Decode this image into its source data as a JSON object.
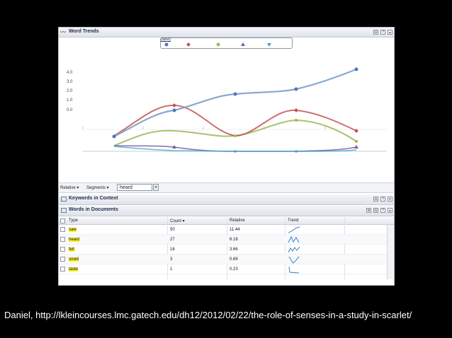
{
  "caption": "Daniel, http://lkleincourses.lmc.gatech.edu/dh12/2012/02/22/the-role-of-senses-in-a-study-in-scarlet/",
  "word_trends": {
    "title": "Word Trends",
    "legend_title": "(label)",
    "y_ticks": [
      "4.0",
      "3.0",
      "2.0",
      "1.0",
      "0.0"
    ],
    "series_colors": [
      "#4a78b5",
      "#c24a4a",
      "#9aba55",
      "#7b5ba8",
      "#3aa7c7"
    ],
    "tools": [
      "⊟",
      "?",
      "▴"
    ]
  },
  "toolbar": {
    "relative_label": "Relative ▾",
    "segments_label": "Segments ▾",
    "term_value": "heard",
    "dropdown_icon": "▾"
  },
  "kic": {
    "title": "Keywords in Context",
    "tools": [
      "⊟",
      "?",
      "▾"
    ]
  },
  "wid": {
    "title": "Words in Documents",
    "tools": [
      "⚙",
      "⊟",
      "?",
      "▴"
    ],
    "columns": [
      "Type",
      "Count ▾",
      "Relative",
      "Trend"
    ],
    "rows": [
      {
        "type": "saw",
        "count": "50",
        "relative": "11.44"
      },
      {
        "type": "heard",
        "count": "27",
        "relative": "6.18"
      },
      {
        "type": "felt",
        "count": "16",
        "relative": "3.66"
      },
      {
        "type": "smell",
        "count": "3",
        "relative": "0.69"
      },
      {
        "type": "taste",
        "count": "1",
        "relative": "0.23"
      }
    ]
  }
}
